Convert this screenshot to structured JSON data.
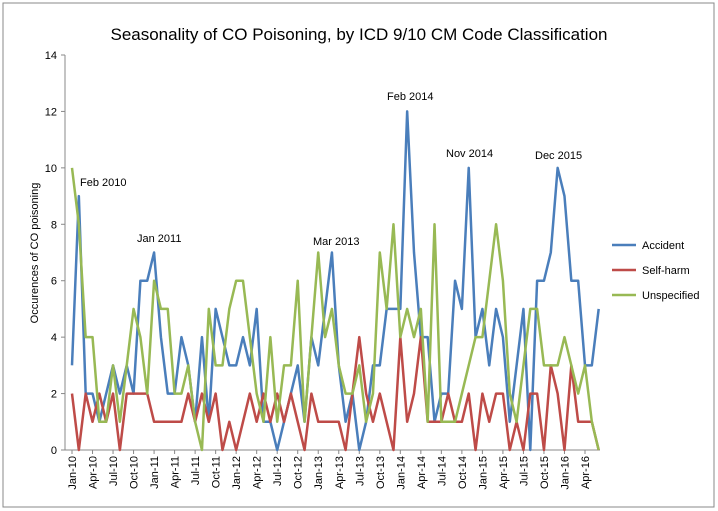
{
  "chart_data": {
    "type": "line",
    "title": "Seasonality of CO Poisoning, by ICD 9/10 CM Code Classification",
    "y_label": "Occurences of CO poisoning",
    "categories": [
      "Jan-10",
      null,
      null,
      "Apr-10",
      null,
      null,
      "Jul-10",
      null,
      null,
      "Oct-10",
      null,
      null,
      "Jan-11",
      null,
      null,
      "Apr-11",
      null,
      null,
      "Jul-11",
      null,
      null,
      "Oct-11",
      null,
      null,
      "Jan-12",
      null,
      null,
      "Apr-12",
      null,
      null,
      "Jul-12",
      null,
      null,
      "Oct-12",
      null,
      null,
      "Jan-13",
      null,
      null,
      "Apr-13",
      null,
      null,
      "Jul-13",
      null,
      null,
      "Oct-13",
      null,
      null,
      "Jan-14",
      null,
      null,
      "Apr-14",
      null,
      null,
      "Jul-14",
      null,
      null,
      "Oct-14",
      null,
      null,
      "Jan-15",
      null,
      null,
      "Apr-15",
      null,
      null,
      "Jul-15",
      null,
      null,
      "Oct-15",
      null,
      null,
      "Jan-16",
      null,
      null,
      "Apr-16",
      null,
      null
    ],
    "series": [
      {
        "name": "Accident",
        "color": "#4a7ebb",
        "values": [
          3,
          9,
          2,
          2,
          1,
          2,
          3,
          2,
          3,
          2,
          6,
          6,
          7,
          4,
          2,
          2,
          4,
          3,
          1,
          4,
          1,
          5,
          4,
          3,
          3,
          4,
          3,
          5,
          1,
          1,
          0,
          1,
          2,
          3,
          1,
          4,
          3,
          5,
          7,
          3,
          1,
          2,
          0,
          1,
          3,
          3,
          5,
          5,
          5,
          12,
          7,
          4,
          4,
          1,
          2,
          2,
          6,
          5,
          10,
          4,
          5,
          3,
          5,
          4,
          1,
          3,
          5,
          0,
          6,
          6,
          7,
          10,
          9,
          6,
          6,
          3,
          3,
          5
        ]
      },
      {
        "name": "Self-harm",
        "color": "#be4b48",
        "values": [
          2,
          0,
          2,
          1,
          2,
          1,
          2,
          0,
          2,
          2,
          2,
          2,
          1,
          1,
          1,
          1,
          1,
          2,
          1,
          2,
          1,
          2,
          0,
          1,
          0,
          1,
          2,
          1,
          2,
          1,
          2,
          1,
          2,
          1,
          0,
          2,
          1,
          1,
          1,
          1,
          0,
          2,
          4,
          2,
          1,
          2,
          1,
          0,
          4,
          1,
          2,
          4,
          1,
          1,
          1,
          2,
          1,
          1,
          2,
          0,
          2,
          1,
          2,
          2,
          0,
          1,
          0,
          2,
          2,
          0,
          3,
          2,
          0,
          3,
          1,
          1,
          1,
          0
        ]
      },
      {
        "name": "Unspecified",
        "color": "#98b954",
        "values": [
          10,
          8,
          4,
          4,
          1,
          1,
          3,
          1,
          3,
          5,
          4,
          2,
          6,
          5,
          5,
          2,
          2,
          3,
          1,
          0,
          5,
          3,
          3,
          5,
          6,
          6,
          4,
          2,
          1,
          4,
          1,
          3,
          3,
          6,
          1,
          4,
          7,
          4,
          5,
          3,
          2,
          2,
          3,
          1,
          2,
          7,
          5,
          8,
          4,
          5,
          4,
          5,
          1,
          8,
          1,
          1,
          1,
          2,
          3,
          4,
          4,
          6,
          8,
          6,
          2,
          1,
          3,
          5,
          5,
          3,
          3,
          3,
          4,
          3,
          2,
          3,
          1,
          0
        ]
      }
    ],
    "ylim": [
      0,
      14
    ],
    "yticks": [
      0,
      2,
      4,
      6,
      8,
      10,
      12,
      14
    ],
    "grid": false,
    "legend": "right",
    "annotations": [
      "Feb 2010",
      "Jan 2011",
      "Mar 2013",
      "Feb 2014",
      "Nov 2014",
      "Dec 2015"
    ]
  }
}
